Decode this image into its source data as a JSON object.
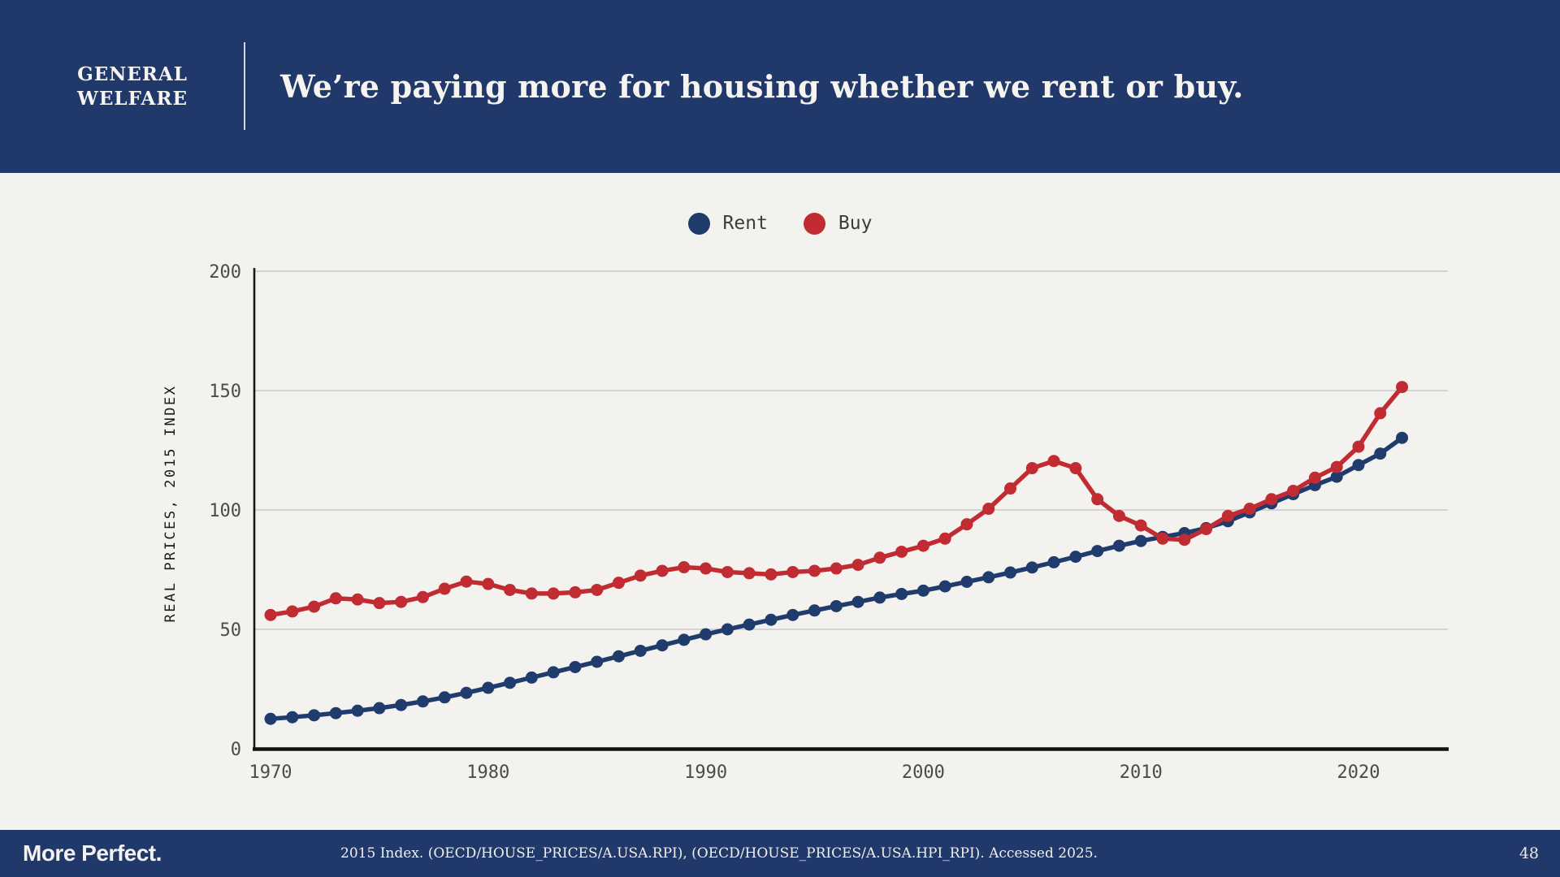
{
  "header": {
    "eyebrow_line1": "GENERAL",
    "eyebrow_line2": "WELFARE",
    "title": "We’re paying more for housing whether we rent or buy."
  },
  "legend": [
    {
      "label": "Rent",
      "color": "#1f3c6d"
    },
    {
      "label": "Buy",
      "color": "#c12b32"
    }
  ],
  "chart_data": {
    "type": "line",
    "title": "",
    "xlabel": "",
    "ylabel": "REAL PRICES, 2015 INDEX",
    "ylim": [
      0,
      200
    ],
    "xlim": [
      1970,
      2022
    ],
    "yticks": [
      0,
      50,
      100,
      150,
      200
    ],
    "xticks": [
      1970,
      1980,
      1990,
      2000,
      2010,
      2020
    ],
    "grid": true,
    "legend_position": "top-center",
    "marker": "circle",
    "x": [
      1970,
      1971,
      1972,
      1973,
      1974,
      1975,
      1976,
      1977,
      1978,
      1979,
      1980,
      1981,
      1982,
      1983,
      1984,
      1985,
      1986,
      1987,
      1988,
      1989,
      1990,
      1991,
      1992,
      1993,
      1994,
      1995,
      1996,
      1997,
      1998,
      1999,
      2000,
      2001,
      2002,
      2003,
      2004,
      2005,
      2006,
      2007,
      2008,
      2009,
      2010,
      2011,
      2012,
      2013,
      2014,
      2015,
      2016,
      2017,
      2018,
      2019,
      2020,
      2021,
      2022
    ],
    "series": [
      {
        "name": "Rent",
        "color": "#1f3c6d",
        "values": [
          12.5,
          13.2,
          14,
          14.9,
          15.9,
          17,
          18.3,
          19.8,
          21.5,
          23.4,
          25.5,
          27.6,
          29.8,
          32,
          34.2,
          36.4,
          38.7,
          41,
          43.3,
          45.6,
          47.9,
          50,
          52,
          54,
          56,
          57.9,
          59.7,
          61.5,
          63.3,
          64.8,
          66.2,
          68,
          69.9,
          71.8,
          73.8,
          75.9,
          78.1,
          80.4,
          82.8,
          85,
          87,
          88.7,
          90.3,
          92.4,
          95.3,
          99,
          102.8,
          106.6,
          110.4,
          113.9,
          118.8,
          123.6,
          130.2
        ]
      },
      {
        "name": "Buy",
        "color": "#c12b32",
        "values": [
          56,
          57.5,
          59.5,
          63,
          62.5,
          61,
          61.5,
          63.5,
          67,
          70,
          69,
          66.5,
          65,
          65,
          65.5,
          66.5,
          69.5,
          72.5,
          74.5,
          76,
          75.5,
          74,
          73.5,
          73,
          74,
          74.5,
          75.5,
          77,
          80,
          82.5,
          85,
          88,
          94,
          100.5,
          109,
          117.5,
          120.5,
          117.5,
          104.5,
          97.5,
          93.5,
          88,
          87.5,
          92,
          97.5,
          100.5,
          104.5,
          108,
          113.5,
          118,
          126.5,
          140.5,
          151.5
        ]
      }
    ],
    "colors": {
      "grid": "#c9c9c9",
      "axis": "#1a1a1a",
      "tick_text": "#4b4b4b",
      "background": "#f4f2ee"
    }
  },
  "footer": {
    "brand": "More Perfect.",
    "citation": "2015 Index. (OECD/HOUSE_PRICES/A.USA.RPI),  (OECD/HOUSE_PRICES/A.USA.HPI_RPI). Accessed 2025.",
    "page_number": "48"
  }
}
